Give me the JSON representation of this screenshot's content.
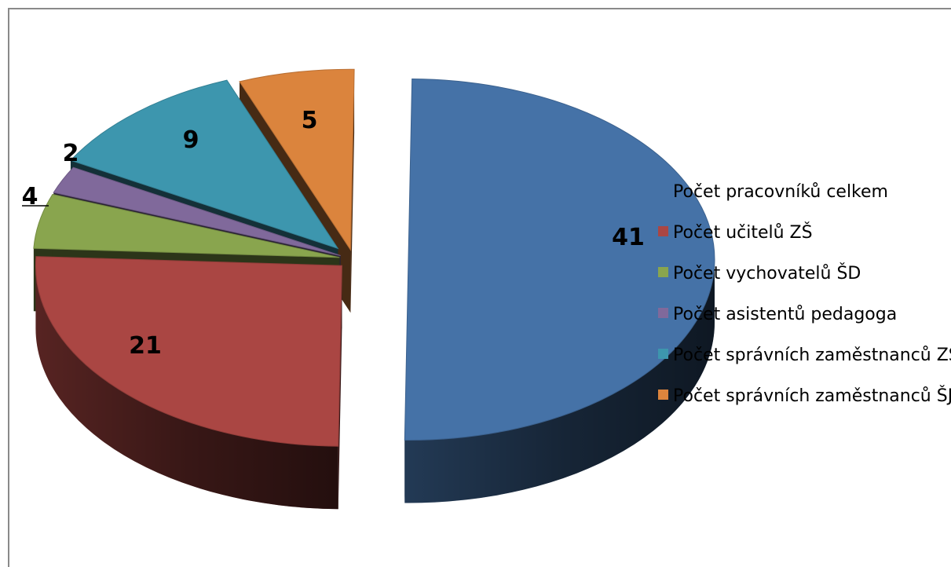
{
  "chart_data": {
    "type": "pie",
    "title": "",
    "categories": [
      "Počet pracovníků celkem",
      "Počet učitelů ZŠ",
      "Počet vychovatelů ŠD",
      "Počet asistentů pedagoga",
      "Počet správních zaměstnanců ZŠ",
      "Počet správních zaměstnanců ŠJ"
    ],
    "values": [
      41,
      21,
      4,
      2,
      9,
      5
    ],
    "value_labels": [
      "41",
      "21",
      "4",
      "2",
      "9",
      "5"
    ],
    "colors": [
      "#4572a7",
      "#aa4643",
      "#89a54e",
      "#80699b",
      "#3d96ae",
      "#db843d"
    ],
    "style": "3d-exploded",
    "legend_position": "right"
  }
}
